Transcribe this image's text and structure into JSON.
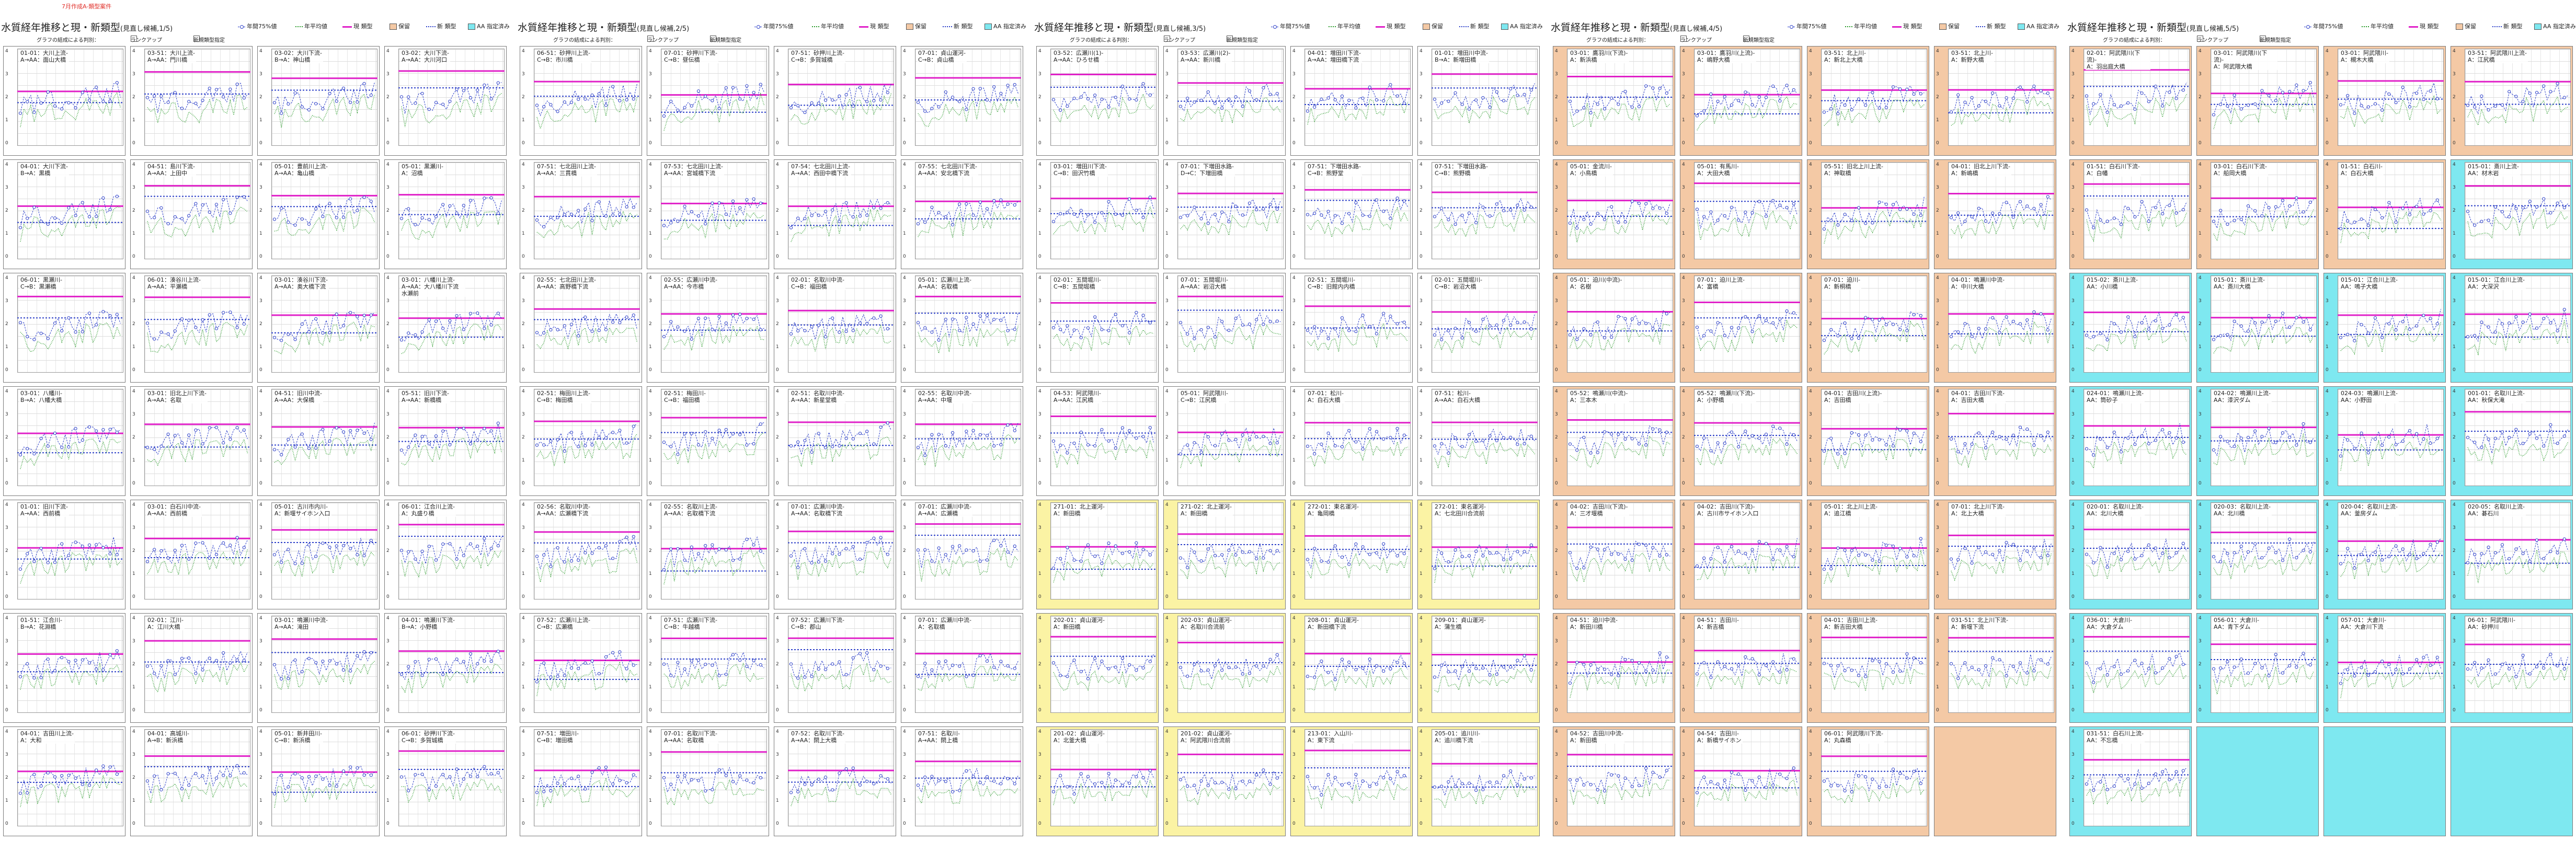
{
  "top_note": "7月作成A-類型案件",
  "legend": {
    "p75": "年間75%値",
    "avg": "年平均値",
    "cur": "現 類型",
    "hold": "保留",
    "new": "新 類型",
    "aa": "AA 指定済み"
  },
  "tools": {
    "t1": "グラフの結成による判別：",
    "t2": "ランクアップ",
    "t3": "新規類型指定"
  },
  "sheets": [
    {
      "title": "水質経年推移と現・新類型",
      "sub": "(見直し候補,1/5)",
      "cells": [
        {
          "l": "01-01：大川上流-\nA→AA：面山大橋"
        },
        {
          "l": "03-51：大川上流-\nA→AA：門川橋"
        },
        {
          "l": "03-02：大川下流-\nB→A：神山橋"
        },
        {
          "l": "03-02：大川下流-\nA→AA：大川河口"
        },
        {
          "l": "04-01：大川下流-\nB→A：黒橋"
        },
        {
          "l": "04-51：島川下流-\nA→AA：上田中"
        },
        {
          "l": "05-01：豊前川上流-\nA→AA：亀山橋"
        },
        {
          "l": "05-01：黒瀬川-\nA：沼橋"
        },
        {
          "l": "06-01：黒瀬川-\nC→B：黒瀬橋"
        },
        {
          "l": "06-01：湊谷川上流-\nA→AA：平瀬橋"
        },
        {
          "l": "03-01：湊谷川下流-\nA→AA：奥大橋下流"
        },
        {
          "l": "03-01：八幡川上流-\nA→AA：大八幡川下流 水瀬前"
        },
        {
          "l": "03-01：八幡川-\nB→A：八幡大橋"
        },
        {
          "l": "03-01：旧北上川下流-\nA→AA：名取"
        },
        {
          "l": "04-51：旧川中流-\nA→AA：大保橋"
        },
        {
          "l": "05-51：旧川下流-\nA→AA：新橋橋"
        },
        {
          "l": "01-01：旧川下流-\nA→AA：西前橋"
        },
        {
          "l": "03-01：白石川中流-\nA→AA：西前橋"
        },
        {
          "l": "05-01：古川市内川-\nA：新堰サイホン入口"
        },
        {
          "l": "06-01：江合川上流-\nA：丸盛り橋"
        },
        {
          "l": "01-51：江合川-\nB→A：花淵橋"
        },
        {
          "l": "02-01：江川-\nA：江川大橋"
        },
        {
          "l": "03-01：鳴瀬川中流-\nA→AA：滝田"
        },
        {
          "l": "04-01：鳴瀬川下流-\nB→A：小野橋"
        },
        {
          "l": "04-01：吉田川上流-\nA：大和"
        },
        {
          "l": "04-01：高城川-\nA→B：新浜橋"
        },
        {
          "l": "05-01：新井田川-\nC→B：新浜橋"
        },
        {
          "l": "06-01：砂押川下流-\nC→B：多賀城橋"
        }
      ]
    },
    {
      "title": "水質経年推移と現・新類型",
      "sub": "(見直し候補,2/5)",
      "cells": [
        {
          "l": "06-51：砂押川上流-\nC→B：市川橋"
        },
        {
          "l": "07-01：砂押川下流-\nC→B：昼伝橋"
        },
        {
          "l": "07-51：砂押川上流-\nC→B：多賀城橋"
        },
        {
          "l": "07-01：貞山運河-\nC→B：貞山橋"
        },
        {
          "l": "07-51：七北田川上流-\nA→AA：三貫橋"
        },
        {
          "l": "07-53：七北田川上流-\nA→AA：宮城橋下流"
        },
        {
          "l": "07-54：七北田川上流-\nA→AA：西田中橋下流"
        },
        {
          "l": "07-55：七北田川下流-\nA→AA：安北橋下流"
        },
        {
          "l": "02-55：七北田川上流-\nA→AA：高野橋下流"
        },
        {
          "l": "02-55：広瀬川中流-\nA→AA：今市橋"
        },
        {
          "l": "02-01：名取川中流-\nC→B：福田橋"
        },
        {
          "l": "05-01：広瀬川上流-\nA→AA：名取橋"
        },
        {
          "l": "02-51：梅田川上流-\nC→B：梅田橋"
        },
        {
          "l": "02-51：梅田川-\nC→B：福田橋"
        },
        {
          "l": "02-51：名取川中流-\nA→AA：新星堂橋"
        },
        {
          "l": "02-55：名取川中流-\nA→AA：中堰"
        },
        {
          "l": "02-56：名取川中流-\nA→AA：広瀬橋下流"
        },
        {
          "l": "02-55：名取川上流-\nA→AA：名取橋下流"
        },
        {
          "l": "07-01：広瀬川中流-\nA→AA：名取橋下流"
        },
        {
          "l": "07-01：広瀬川中流-\nA→AA：広瀬橋"
        },
        {
          "l": "07-52：広瀬川上流-\nC→B：広瀬橋"
        },
        {
          "l": "07-51：広瀬川下流-\nC→B：牛越橋"
        },
        {
          "l": "07-52：広瀬川下流-\nC→B：郡山"
        },
        {
          "l": "07-01：広瀬川中流-\nA：名取橋"
        },
        {
          "l": "07-51：増田川-\nC→B：増田橋"
        },
        {
          "l": "07-01：名取川下流-\nA→AA：名取橋"
        },
        {
          "l": "07-52：名取川下流-\nA→AA：閖上大橋"
        },
        {
          "l": "07-51：名取川-\nA→AA：閖上橋"
        }
      ]
    },
    {
      "title": "水質経年推移と現・新類型",
      "sub": "(見直し候補,3/5)",
      "cells": [
        {
          "l": "03-52：広瀬川(1)-\nA→AA：ひろせ橋"
        },
        {
          "l": "03-53：広瀬川(2)-\nA→AA：新川橋"
        },
        {
          "l": "04-01：増田川下流-\nA→AA：増田橋下流"
        },
        {
          "l": "01-01：増田川中流-\nB→A：新増田橋"
        },
        {
          "l": "03-01：増田川下流-\nC→B：田沢竹橋"
        },
        {
          "l": "07-01：下増田水路-\nD→C：下増田橋"
        },
        {
          "l": "07-51：下増田水路-\nC→B：熊野堂"
        },
        {
          "l": "07-51：下増田水路-\nC→B：熊野橋"
        },
        {
          "l": "02-01：五間堀川-\nC→B：五間堀橋"
        },
        {
          "l": "07-01：五間堀川-\nA→AA：岩沼大橋"
        },
        {
          "l": "02-51：五間堀川-\nC→B：旧館内内橋"
        },
        {
          "l": "02-01：五間堀川-\nC→B：岩沼大橋"
        },
        {
          "l": "04-53：阿武隈川-\nA→AA：江尻橋"
        },
        {
          "l": "05-01：阿武隈川-\nC→B：江尻橋"
        },
        {
          "l": "07-01：松川-\nA：白石大橋"
        },
        {
          "l": "07-51：松川-\nA→AA：白石大橋"
        },
        {
          "l": "271-01：北上運河-\nA：新田橋"
        },
        {
          "l": "271-02：北上運河-\nA：新田橋"
        },
        {
          "l": "272-01：東名運河-\nA：亀岡橋"
        },
        {
          "l": "272-01：東名運河-\nA：七北田川合流前"
        },
        {
          "l": "202-01：貞山運河-\nA：新田橋"
        },
        {
          "l": "202-03：貞山運河-\nA：名取川合流前"
        },
        {
          "l": "208-01：貞山運河-\nA：新田橋下流"
        },
        {
          "l": "209-01：貞山運河-\nA：蒲生橋"
        },
        {
          "l": "201-02：貞山運河-\nA：北釜大橋"
        },
        {
          "l": "201-02：貞山運河-\nA：阿武隈川合流前"
        },
        {
          "l": "213-01：入山川-\nA：東下流"
        },
        {
          "l": "205-01：追川川-\nA：追川橋下流"
        }
      ]
    },
    {
      "title": "水質経年推移と現・新類型",
      "sub": "(見直し候補,4/5)",
      "cells": [
        {
          "l": "03-01：鷹羽川(下流)-\nA：新浜橋"
        },
        {
          "l": "03-01：鷹羽川(上流)-\nA：嶋野大橋"
        },
        {
          "l": "03-51：北上川-\nA：新北上大橋"
        },
        {
          "l": "03-51：北上川-\nA：新野大橋"
        },
        {
          "l": "05-01：金流川-\nA：小鳥橋"
        },
        {
          "l": "05-01：有馬川-\nA：大田大橋"
        },
        {
          "l": "05-51：旧北上川上流-\nA：神取橋"
        },
        {
          "l": "04-01：旧北上川下流-\nA：新嶋橋"
        },
        {
          "l": "05-01：迫川(中流)-\nA：名樹"
        },
        {
          "l": "07-01：迫川上流-\nA：富橋"
        },
        {
          "l": "07-01：迫川-\nA：新桐橋"
        },
        {
          "l": "04-01：鳴瀬川中流-\nA：中川大橋"
        },
        {
          "l": "05-52：鳴瀬川(中流)-\nA：三本木"
        },
        {
          "l": "05-52：鳴瀬川(下流)-\nA：小野橋"
        },
        {
          "l": "04-01：吉田川(上流)-\nA：吉田橋"
        },
        {
          "l": "04-01：吉田川下流-\nA：吉田大橋"
        },
        {
          "l": "04-02：吉田川(下流)-\nA：三才堰橋"
        },
        {
          "l": "04-02：吉田川(下流)-\nA：古川市サイホン入口"
        },
        {
          "l": "05-01：北上川上流-\nA：追江橋"
        },
        {
          "l": "07-01：北上川下流-\nA：北上大橋"
        },
        {
          "l": "04-51：迫川中流-\nA：新田川橋"
        },
        {
          "l": "04-51：吉田川-\nA：新吉橋"
        },
        {
          "l": "04-01：吉田川上流-\nA：新吉田大橋"
        },
        {
          "l": "031-51：北上川下流-\nA：新堰下流"
        },
        {
          "l": "04-52：吉田川中流-\nA：新田橋"
        },
        {
          "l": "04-54：吉田川-\nA：新橋サイホン"
        },
        {
          "l": "06-01：阿武隈川下流-\nA：丸森橋"
        },
        {
          "l": ""
        }
      ]
    },
    {
      "title": "水質経年推移と現・新類型",
      "sub": "(見直し候補,5/5)",
      "cells": [
        {
          "l": "02-01：阿武隈川(下流)-\nA：羽出庭大橋"
        },
        {
          "l": "03-01：阿武隈川(下流)-\nA：阿武隈大橋"
        },
        {
          "l": "03-01：阿武隈川-\nA：槻木大橋"
        },
        {
          "l": "03-51：阿武隈川上流-\nA：江尻橋"
        },
        {
          "l": "01-51：白石川下流-\nA：白幡"
        },
        {
          "l": "03-01：白石川下流-\nA：船岡大橋"
        },
        {
          "l": "01-51：白石川-\nA：白石大橋"
        },
        {
          "l": "015-01：斎川上流-\nAA：材木岩"
        },
        {
          "l": "015-02：斎川上流-\nAA：小川橋"
        },
        {
          "l": "015-01：斎川上流-\nAA：斎川大橋"
        },
        {
          "l": "015-01：江合川上流-\nAA：鳴子大橋"
        },
        {
          "l": "015-01：江合川上流-\nAA：大深沢"
        },
        {
          "l": "024-01：鳴瀬川上流-\nAA：筒砂子"
        },
        {
          "l": "024-02：鳴瀬川上流-\nAA：漆沢ダム"
        },
        {
          "l": "024-03：鳴瀬川上流-\nAA：小野田"
        },
        {
          "l": "001-01：名取川上流-\nAA：秋保大滝"
        },
        {
          "l": "020-01：名取川上流-\nAA：北川大橋"
        },
        {
          "l": "020-03：名取川上流-\nAA：北川橋"
        },
        {
          "l": "020-04：名取川上流-\nAA：釜房ダム"
        },
        {
          "l": "020-05：名取川上流-\nAA：碁石川"
        },
        {
          "l": "036-01：大倉川-\nAA：大倉ダム"
        },
        {
          "l": "056-01：大倉川-\nAA：青下ダム"
        },
        {
          "l": "057-01：大倉川-\nAA：大倉川下流"
        },
        {
          "l": "06-01：阿武隈川-\nAA：砂押川"
        },
        {
          "l": "031-51：白石川上流-\nAA：不忘橋"
        },
        {
          "l": ""
        },
        {
          "l": ""
        },
        {
          "l": ""
        }
      ]
    }
  ],
  "chart_data": {
    "type": "line",
    "title": "水質経年推移と現・新類型",
    "series": [
      {
        "name": "年間75%値"
      },
      {
        "name": "年平均値"
      },
      {
        "name": "現 類型"
      },
      {
        "name": "新 類型"
      }
    ]
  }
}
